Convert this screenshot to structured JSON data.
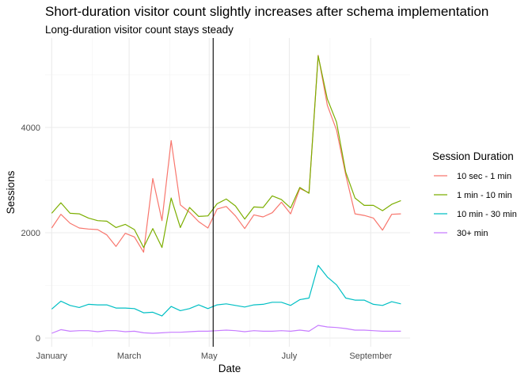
{
  "chart_data": {
    "type": "line",
    "title": "Short-duration visitor count slightly increases after schema implementation",
    "subtitle": "Long-duration visitor count stays steady",
    "xlabel": "Date",
    "ylabel": "Sessions",
    "x_ticks": [
      "January",
      "March",
      "May",
      "July",
      "September"
    ],
    "y_ticks": [
      "0",
      "2000",
      "4000"
    ],
    "ylim": [
      0,
      5600
    ],
    "grid": true,
    "legend_title": "Session Duration",
    "legend_position": "right",
    "annotation": "vertical line at early May (schema implementation)",
    "x": [
      "2018-01-01",
      "2018-01-08",
      "2018-01-15",
      "2018-01-22",
      "2018-01-29",
      "2018-02-05",
      "2018-02-12",
      "2018-02-19",
      "2018-02-26",
      "2018-03-05",
      "2018-03-12",
      "2018-03-19",
      "2018-03-26",
      "2018-04-02",
      "2018-04-09",
      "2018-04-16",
      "2018-04-23",
      "2018-04-30",
      "2018-05-07",
      "2018-05-14",
      "2018-05-21",
      "2018-05-28",
      "2018-06-04",
      "2018-06-11",
      "2018-06-18",
      "2018-06-25",
      "2018-07-02",
      "2018-07-09",
      "2018-07-16",
      "2018-07-23",
      "2018-07-30",
      "2018-08-06",
      "2018-08-13",
      "2018-08-20",
      "2018-08-27",
      "2018-09-03",
      "2018-09-10",
      "2018-09-17",
      "2018-09-24"
    ],
    "vline_x": "2018-05-04",
    "series": [
      {
        "name": "10 sec - 1 min",
        "color": "#F8766D",
        "values": [
          2090,
          2350,
          2180,
          2090,
          2070,
          2060,
          1960,
          1740,
          1990,
          1920,
          1630,
          3030,
          2230,
          3750,
          2530,
          2390,
          2210,
          2090,
          2450,
          2500,
          2320,
          2080,
          2340,
          2300,
          2380,
          2580,
          2360,
          2840,
          2760,
          5370,
          4420,
          3950,
          3100,
          2360,
          2330,
          2280,
          2050,
          2350,
          2360
        ]
      },
      {
        "name": "1 min - 10 min",
        "color": "#7CAE00",
        "values": [
          2370,
          2570,
          2370,
          2360,
          2280,
          2230,
          2220,
          2100,
          2160,
          2060,
          1720,
          2080,
          1720,
          2660,
          2100,
          2480,
          2310,
          2320,
          2550,
          2640,
          2510,
          2260,
          2490,
          2480,
          2700,
          2630,
          2470,
          2860,
          2750,
          5360,
          4540,
          4100,
          3150,
          2660,
          2520,
          2520,
          2420,
          2540,
          2610
        ]
      },
      {
        "name": "10 min - 30 min",
        "color": "#00BFC4",
        "values": [
          550,
          700,
          620,
          580,
          640,
          630,
          630,
          570,
          570,
          560,
          480,
          490,
          420,
          600,
          520,
          560,
          630,
          560,
          630,
          650,
          620,
          590,
          630,
          640,
          680,
          680,
          620,
          730,
          760,
          1380,
          1160,
          1010,
          760,
          720,
          720,
          640,
          620,
          690,
          650
        ]
      },
      {
        "name": "30+ min",
        "color": "#C77CFF",
        "values": [
          90,
          160,
          130,
          140,
          140,
          120,
          140,
          140,
          120,
          130,
          100,
          90,
          100,
          110,
          110,
          120,
          130,
          130,
          140,
          150,
          140,
          120,
          140,
          130,
          130,
          140,
          130,
          150,
          130,
          240,
          210,
          200,
          180,
          150,
          150,
          140,
          130,
          130,
          130
        ]
      }
    ]
  }
}
